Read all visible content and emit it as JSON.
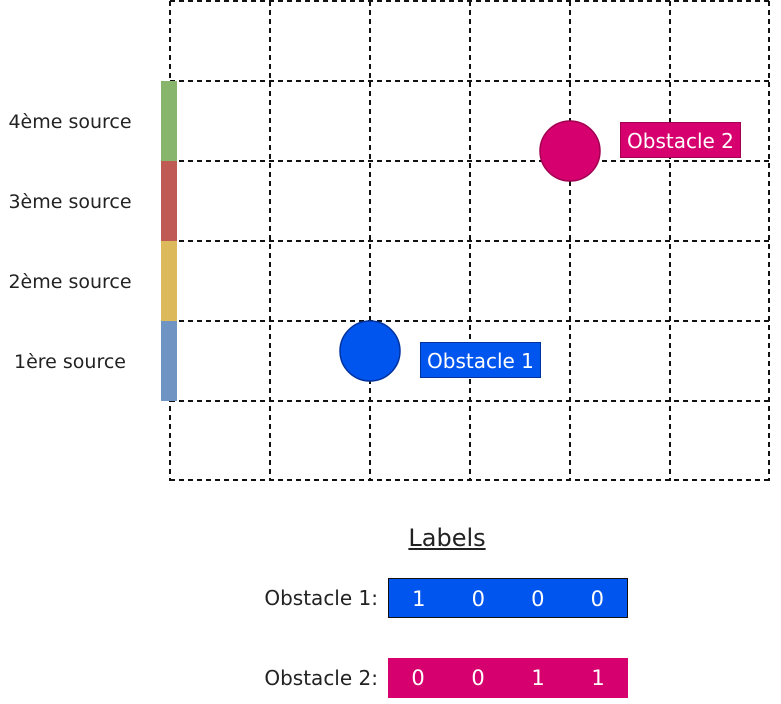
{
  "sources": [
    {
      "label": "1ère source",
      "color": "#6f93c2"
    },
    {
      "label": "2ème source",
      "color": "#dcb95a"
    },
    {
      "label": "3ème source",
      "color": "#c05a55"
    },
    {
      "label": "4ème source",
      "color": "#86b56b"
    }
  ],
  "obstacles": [
    {
      "label": "Obstacle 1",
      "color": "#0055ee"
    },
    {
      "label": "Obstacle 2",
      "color": "#d6006e"
    }
  ],
  "legend": {
    "title": "Labels",
    "rows": [
      {
        "name": "Obstacle 1:",
        "bits": [
          "1",
          "0",
          "0",
          "0"
        ],
        "color": "#0055ee"
      },
      {
        "name": "Obstacle 2:",
        "bits": [
          "0",
          "0",
          "1",
          "1"
        ],
        "color": "#d6006e"
      }
    ]
  }
}
